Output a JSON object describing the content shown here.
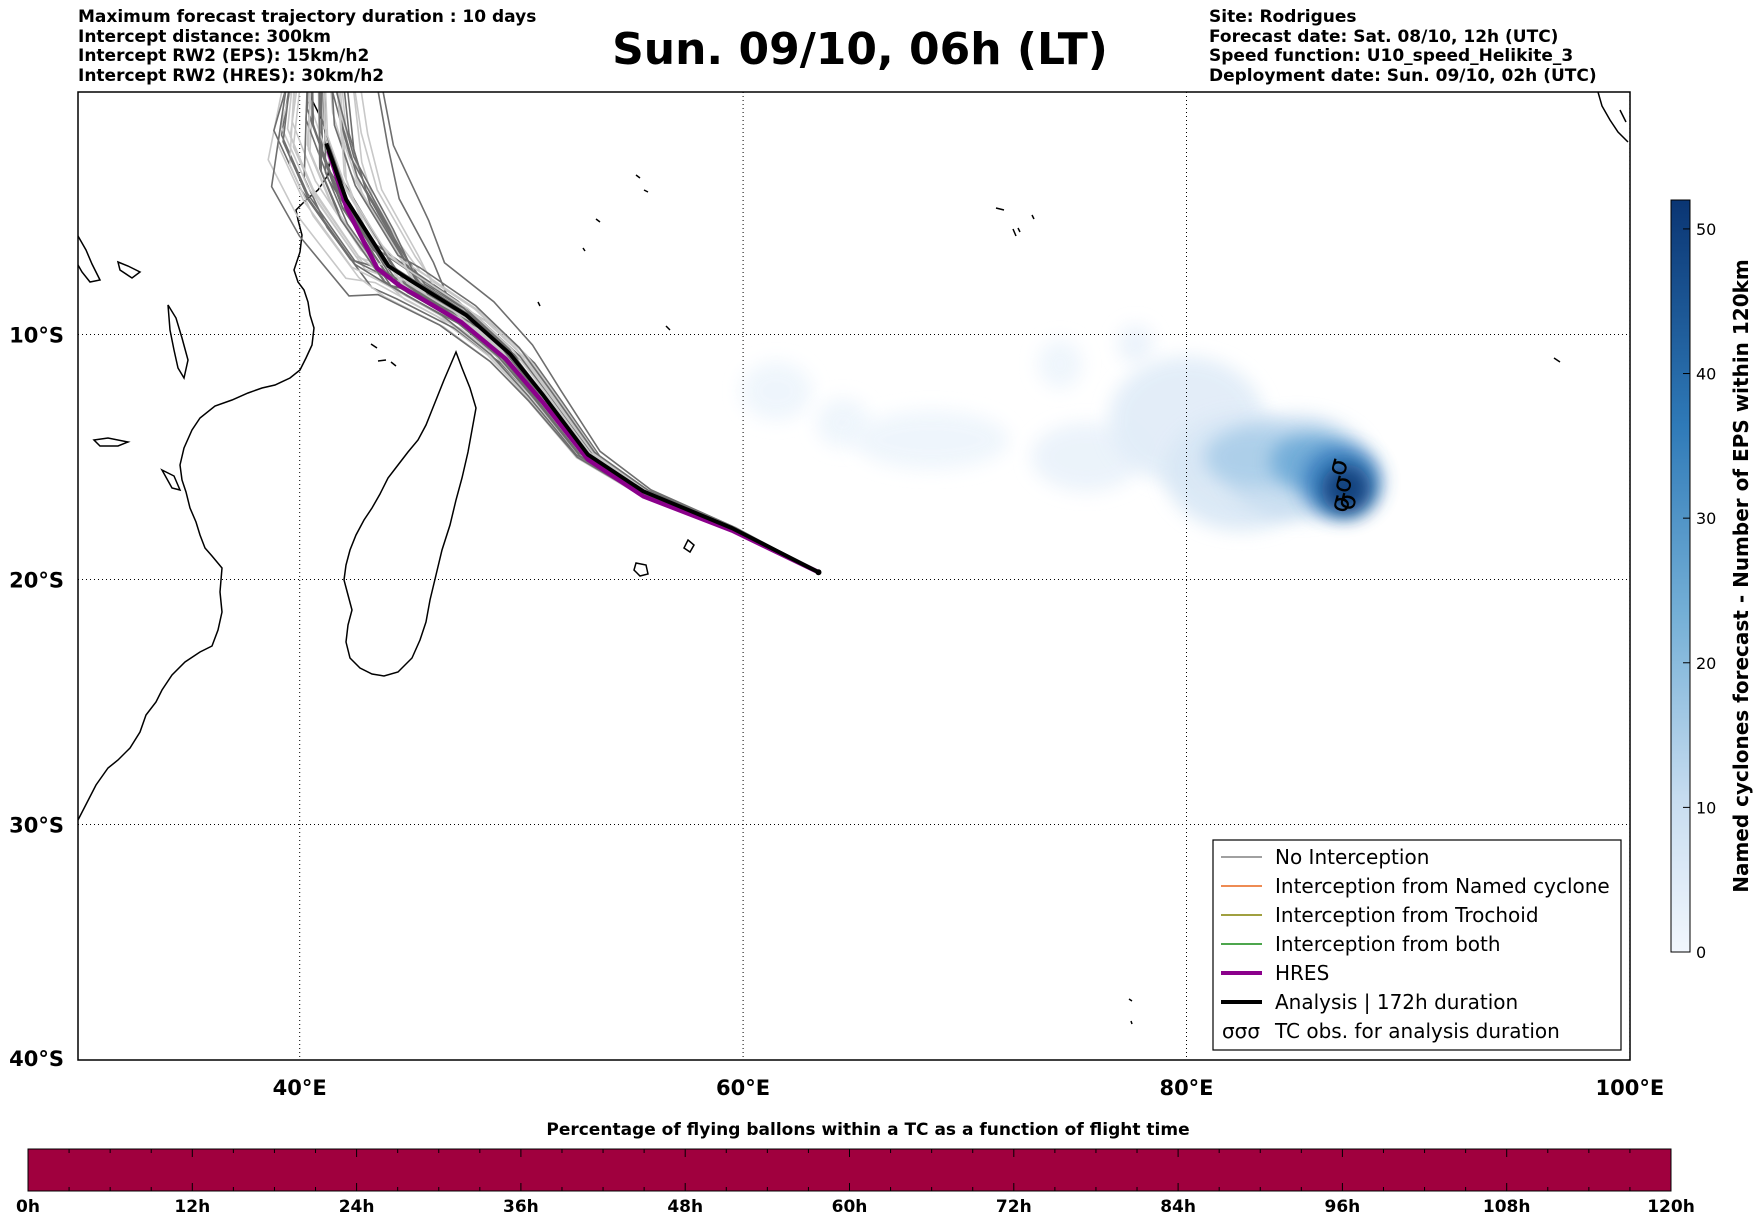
{
  "header_left": [
    "Maximum forecast trajectory duration : 10 days",
    "Intercept distance: 300km",
    "Intercept RW2 (EPS):  15km/h2",
    "Intercept RW2 (HRES): 30km/h2"
  ],
  "header_right": [
    "Site: Rodrigues",
    "Forecast date: Sat. 08/10, 12h (UTC)",
    "Speed function: U10_speed_Helikite_3",
    "Deployment date: Sun. 09/10, 02h (UTC)"
  ],
  "title": "Sun. 09/10, 06h (LT)",
  "map": {
    "lon_range": [
      30,
      100
    ],
    "lat_range": [
      -40,
      -0.1
    ],
    "lon_ticks": [
      {
        "value": 40,
        "label": "40°E"
      },
      {
        "value": 60,
        "label": "60°E"
      },
      {
        "value": 80,
        "label": "80°E"
      },
      {
        "value": 100,
        "label": "100°E"
      }
    ],
    "lat_ticks": [
      {
        "value": -10,
        "label": "10°S"
      },
      {
        "value": -20,
        "label": "20°S"
      },
      {
        "value": -30,
        "label": "30°S"
      },
      {
        "value": -40,
        "label": "40°S"
      }
    ],
    "gridlines": "dotted"
  },
  "chart_data": {
    "type": "line",
    "x_unit": "longitude (°E)",
    "y_unit": "latitude (°S shown as negative)",
    "launch_point": {
      "lon": 63.4,
      "lat": -19.7
    },
    "series": [
      {
        "name": "Analysis | 172h duration",
        "color": "#000000",
        "lon": [
          63.4,
          59.5,
          55.5,
          53.0,
          51.0,
          49.5,
          47.5,
          45.0,
          44.0,
          42.1,
          41.2
        ],
        "lat": [
          -19.7,
          -17.9,
          -16.4,
          -14.9,
          -12.5,
          -10.8,
          -9.2,
          -7.8,
          -7.2,
          -4.5,
          -2.2
        ]
      },
      {
        "name": "HRES",
        "color": "#8b008b",
        "lon": [
          63.4,
          59.5,
          55.5,
          53.0,
          51.0,
          49.3,
          47.3,
          44.5,
          43.5,
          42.1,
          41.3
        ],
        "lat": [
          -19.7,
          -18.0,
          -16.6,
          -15.1,
          -12.8,
          -11.0,
          -9.5,
          -8.0,
          -7.3,
          -4.8,
          -2.5
        ]
      }
    ],
    "ensemble": {
      "name": "No Interception",
      "color": "#808080",
      "member_count": 50
    },
    "tc_obs": {
      "name": "TC obs. for analysis duration",
      "points": [
        {
          "lon": 87.2,
          "lat": -15.5
        },
        {
          "lon": 87.4,
          "lat": -16.2
        },
        {
          "lon": 87.6,
          "lat": -16.9
        },
        {
          "lon": 87.3,
          "lat": -17.0
        }
      ]
    },
    "density": {
      "label": "Named cyclones forecast - Number of EPS within 120km",
      "range": [
        0,
        52
      ],
      "ticks": [
        0,
        10,
        20,
        30,
        40,
        50
      ],
      "colors": [
        "#deebf7",
        "#9ecae1",
        "#4292c6",
        "#08306b"
      ],
      "blobs": [
        {
          "lon": 61.5,
          "lat": -12.3,
          "rx": 1.6,
          "ry": 1.2,
          "value": 1
        },
        {
          "lon": 64.5,
          "lat": -13.6,
          "rx": 1.2,
          "ry": 1.0,
          "value": 1
        },
        {
          "lon": 68.5,
          "lat": -14.3,
          "rx": 3.5,
          "ry": 1.2,
          "value": 1
        },
        {
          "lon": 74.3,
          "lat": -11.2,
          "rx": 1.0,
          "ry": 1.0,
          "value": 1
        },
        {
          "lon": 75.5,
          "lat": -15.0,
          "rx": 2.5,
          "ry": 1.4,
          "value": 2
        },
        {
          "lon": 77.7,
          "lat": -10.4,
          "rx": 0.8,
          "ry": 0.8,
          "value": 2
        },
        {
          "lon": 80.0,
          "lat": -13.5,
          "rx": 3.5,
          "ry": 2.6,
          "value": 4
        },
        {
          "lon": 82.5,
          "lat": -15.6,
          "rx": 3.5,
          "ry": 2.4,
          "value": 6
        },
        {
          "lon": 85.0,
          "lat": -15.4,
          "rx": 3.3,
          "ry": 2.1,
          "value": 10
        },
        {
          "lon": 83.0,
          "lat": -15.0,
          "rx": 2.2,
          "ry": 1.2,
          "value": 15
        },
        {
          "lon": 85.6,
          "lat": -15.2,
          "rx": 1.8,
          "ry": 1.2,
          "value": 25
        },
        {
          "lon": 87.0,
          "lat": -16.0,
          "rx": 1.8,
          "ry": 1.5,
          "value": 35
        },
        {
          "lon": 87.2,
          "lat": -16.3,
          "rx": 1.1,
          "ry": 1.0,
          "value": 50
        }
      ]
    }
  },
  "legend": [
    {
      "label": "No Interception",
      "color": "#808080",
      "width": 1.5,
      "kind": "line"
    },
    {
      "label": "Interception from Named cyclone",
      "color": "#e8651a",
      "width": 1.5,
      "kind": "line"
    },
    {
      "label": "Interception from Trochoid",
      "color": "#808000",
      "width": 1.5,
      "kind": "line"
    },
    {
      "label": "Interception from both",
      "color": "#128812",
      "width": 1.5,
      "kind": "line"
    },
    {
      "label": "HRES",
      "color": "#8b008b",
      "width": 4,
      "kind": "line"
    },
    {
      "label": "Analysis | 172h duration",
      "color": "#000000",
      "width": 4,
      "kind": "line"
    },
    {
      "label": "TC obs. for analysis duration",
      "color": "#000000",
      "kind": "symbol",
      "symbol": "σσσ"
    }
  ],
  "colorbar_label": "Named cyclones forecast - Number of EPS within 120km",
  "bottom_bar": {
    "title": "Percentage of flying ballons within a TC as a function of flight time",
    "fill_color": "#a0003e",
    "ticks": [
      "0h",
      "12h",
      "24h",
      "36h",
      "48h",
      "60h",
      "72h",
      "84h",
      "96h",
      "108h",
      "120h"
    ]
  }
}
